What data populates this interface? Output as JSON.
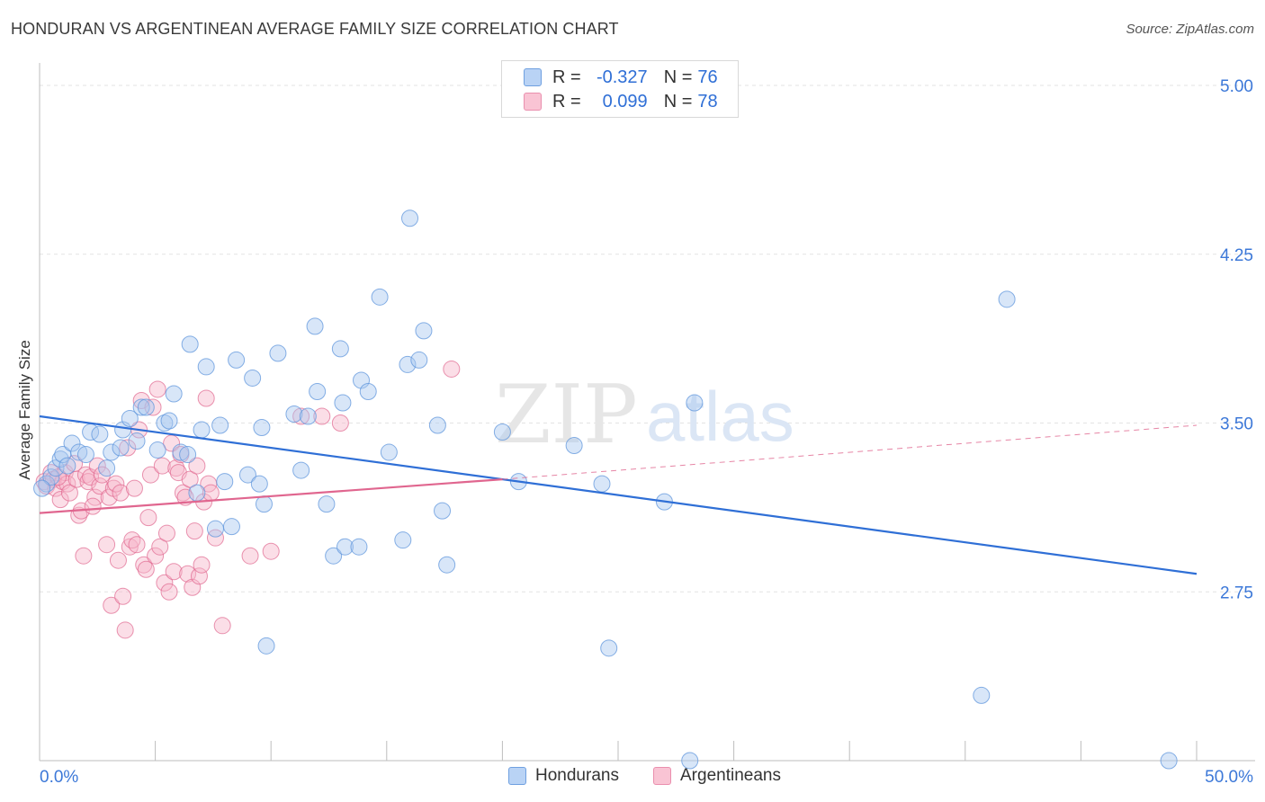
{
  "header": {
    "title": "HONDURAN VS ARGENTINEAN AVERAGE FAMILY SIZE CORRELATION CHART",
    "source": "Source: ZipAtlas.com"
  },
  "legend": {
    "r_label": "R =",
    "n_label": "N =",
    "series": [
      {
        "name": "Hondurans",
        "r": "-0.327",
        "n": "76",
        "color": "#6fa0e0"
      },
      {
        "name": "Argentineans",
        "r": "0.099",
        "n": "78",
        "color": "#ea8fae"
      }
    ]
  },
  "watermark": {
    "zip": "ZIP",
    "atlas": "atlas"
  },
  "colors": {
    "blue_line": "#2f6fd6",
    "pink_line": "#e0668f",
    "blue_fill": "#a9c8f0",
    "pink_fill": "#f7b6c9",
    "axis_text": "#3c78d8",
    "grid": "#e3e3e3"
  },
  "chart_data": {
    "type": "scatter",
    "title": "HONDURAN VS ARGENTINEAN AVERAGE FAMILY SIZE CORRELATION CHART",
    "xlabel": "",
    "ylabel": "Average Family Size",
    "xlim": [
      0,
      50
    ],
    "ylim": [
      2.0,
      5.1
    ],
    "x_tick_labels": [
      "0.0%",
      "50.0%"
    ],
    "y_ticks": [
      2.75,
      3.5,
      4.25,
      5.0
    ],
    "y_tick_labels": [
      "2.75",
      "3.50",
      "4.25",
      "5.00"
    ],
    "grid": true,
    "series": [
      {
        "name": "Hondurans",
        "points": [
          [
            0.3,
            3.23
          ],
          [
            0.5,
            3.26
          ],
          [
            0.7,
            3.3
          ],
          [
            0.9,
            3.34
          ],
          [
            1.0,
            3.36
          ],
          [
            1.2,
            3.31
          ],
          [
            1.4,
            3.41
          ],
          [
            1.7,
            3.37
          ],
          [
            2.0,
            3.36
          ],
          [
            2.2,
            3.46
          ],
          [
            2.6,
            3.45
          ],
          [
            2.9,
            3.3
          ],
          [
            3.1,
            3.37
          ],
          [
            3.5,
            3.39
          ],
          [
            3.6,
            3.47
          ],
          [
            3.9,
            3.52
          ],
          [
            4.2,
            3.42
          ],
          [
            4.4,
            3.57
          ],
          [
            4.6,
            3.57
          ],
          [
            5.1,
            3.38
          ],
          [
            5.4,
            3.5
          ],
          [
            5.6,
            3.51
          ],
          [
            5.8,
            3.63
          ],
          [
            6.1,
            3.37
          ],
          [
            6.4,
            3.36
          ],
          [
            6.5,
            3.85
          ],
          [
            6.8,
            3.19
          ],
          [
            7.0,
            3.47
          ],
          [
            7.2,
            3.75
          ],
          [
            7.6,
            3.03
          ],
          [
            7.8,
            3.49
          ],
          [
            8.0,
            3.24
          ],
          [
            8.3,
            3.04
          ],
          [
            8.5,
            3.78
          ],
          [
            9.0,
            3.27
          ],
          [
            9.2,
            3.7
          ],
          [
            9.5,
            3.23
          ],
          [
            9.6,
            3.48
          ],
          [
            9.8,
            2.51
          ],
          [
            9.7,
            3.14
          ],
          [
            10.3,
            3.81
          ],
          [
            11.0,
            3.54
          ],
          [
            11.3,
            3.29
          ],
          [
            11.6,
            3.53
          ],
          [
            11.9,
            3.93
          ],
          [
            12.0,
            3.64
          ],
          [
            12.4,
            3.14
          ],
          [
            12.7,
            2.91
          ],
          [
            13.0,
            3.83
          ],
          [
            13.1,
            3.59
          ],
          [
            13.2,
            2.95
          ],
          [
            13.8,
            2.95
          ],
          [
            13.9,
            3.69
          ],
          [
            14.2,
            3.64
          ],
          [
            14.7,
            4.06
          ],
          [
            15.1,
            3.37
          ],
          [
            15.7,
            2.98
          ],
          [
            15.9,
            3.76
          ],
          [
            16.0,
            4.41
          ],
          [
            16.4,
            3.78
          ],
          [
            16.6,
            3.91
          ],
          [
            17.2,
            3.49
          ],
          [
            17.4,
            3.11
          ],
          [
            17.6,
            2.87
          ],
          [
            20.0,
            3.46
          ],
          [
            20.7,
            3.24
          ],
          [
            23.1,
            3.4
          ],
          [
            24.3,
            3.23
          ],
          [
            24.6,
            2.5
          ],
          [
            27.0,
            3.15
          ],
          [
            28.3,
            3.59
          ],
          [
            28.1,
            2.0
          ],
          [
            40.7,
            2.29
          ],
          [
            41.8,
            4.05
          ],
          [
            48.8,
            2.0
          ],
          [
            0.1,
            3.21
          ]
        ],
        "trendline": {
          "x": [
            0,
            50
          ],
          "y": [
            3.53,
            2.83
          ]
        }
      },
      {
        "name": "Argentineans",
        "points": [
          [
            0.2,
            3.24
          ],
          [
            0.3,
            3.22
          ],
          [
            0.5,
            3.28
          ],
          [
            0.6,
            3.25
          ],
          [
            0.7,
            3.21
          ],
          [
            0.9,
            3.16
          ],
          [
            1.0,
            3.24
          ],
          [
            1.1,
            3.28
          ],
          [
            1.2,
            3.23
          ],
          [
            1.3,
            3.19
          ],
          [
            1.5,
            3.32
          ],
          [
            1.6,
            3.25
          ],
          [
            1.7,
            3.09
          ],
          [
            1.8,
            3.11
          ],
          [
            1.9,
            2.91
          ],
          [
            2.0,
            3.27
          ],
          [
            2.1,
            3.24
          ],
          [
            2.2,
            3.26
          ],
          [
            2.4,
            3.17
          ],
          [
            2.5,
            3.31
          ],
          [
            2.6,
            3.22
          ],
          [
            2.7,
            3.27
          ],
          [
            2.9,
            2.96
          ],
          [
            3.0,
            3.17
          ],
          [
            3.1,
            2.69
          ],
          [
            3.2,
            3.21
          ],
          [
            3.3,
            3.23
          ],
          [
            3.4,
            2.89
          ],
          [
            3.5,
            3.19
          ],
          [
            3.6,
            2.73
          ],
          [
            3.7,
            2.58
          ],
          [
            3.8,
            3.39
          ],
          [
            3.9,
            2.95
          ],
          [
            4.0,
            2.98
          ],
          [
            4.1,
            3.21
          ],
          [
            4.2,
            2.96
          ],
          [
            4.3,
            3.47
          ],
          [
            4.4,
            3.6
          ],
          [
            4.5,
            2.87
          ],
          [
            4.6,
            2.85
          ],
          [
            4.7,
            3.08
          ],
          [
            4.8,
            3.27
          ],
          [
            4.9,
            3.57
          ],
          [
            5.0,
            2.91
          ],
          [
            5.1,
            3.65
          ],
          [
            5.2,
            2.95
          ],
          [
            5.3,
            3.31
          ],
          [
            5.4,
            2.79
          ],
          [
            5.5,
            3.01
          ],
          [
            5.6,
            2.75
          ],
          [
            5.7,
            3.41
          ],
          [
            5.8,
            2.84
          ],
          [
            5.9,
            3.3
          ],
          [
            6.0,
            3.28
          ],
          [
            6.1,
            3.36
          ],
          [
            6.2,
            3.19
          ],
          [
            6.3,
            3.17
          ],
          [
            6.4,
            2.83
          ],
          [
            6.5,
            3.25
          ],
          [
            6.6,
            2.77
          ],
          [
            6.7,
            3.02
          ],
          [
            6.8,
            3.31
          ],
          [
            6.9,
            2.82
          ],
          [
            7.0,
            2.87
          ],
          [
            7.1,
            3.15
          ],
          [
            7.2,
            3.61
          ],
          [
            7.3,
            3.23
          ],
          [
            7.4,
            3.19
          ],
          [
            7.6,
            2.99
          ],
          [
            7.9,
            2.6
          ],
          [
            9.1,
            2.91
          ],
          [
            10.0,
            2.93
          ],
          [
            11.3,
            3.53
          ],
          [
            12.2,
            3.53
          ],
          [
            13.0,
            3.5
          ],
          [
            17.8,
            3.74
          ],
          [
            0.8,
            3.26
          ],
          [
            2.3,
            3.13
          ]
        ],
        "trendline": {
          "x": [
            0,
            20
          ],
          "y": [
            3.1,
            3.25
          ]
        },
        "trendline_dashed": {
          "x": [
            20,
            50
          ],
          "y": [
            3.25,
            3.49
          ]
        }
      }
    ]
  }
}
